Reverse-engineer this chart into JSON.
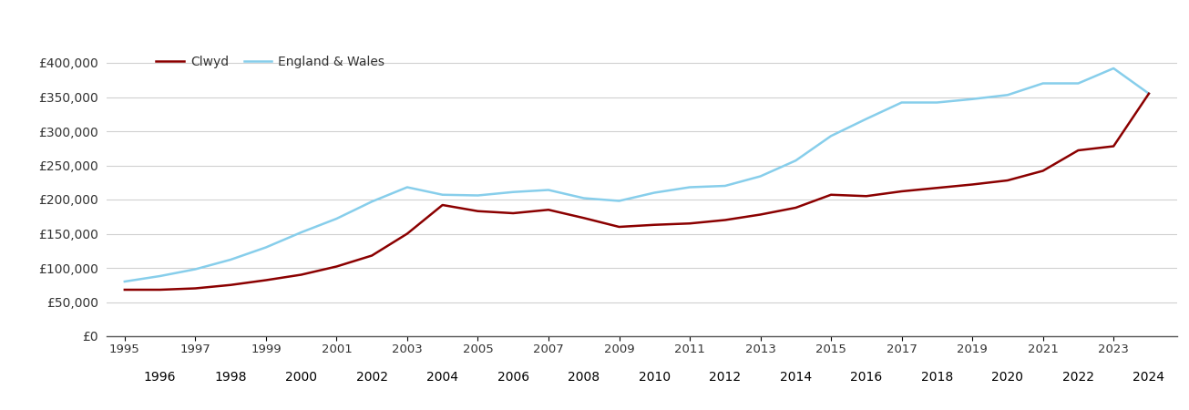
{
  "years": [
    1995,
    1996,
    1997,
    1998,
    1999,
    2000,
    2001,
    2002,
    2003,
    2004,
    2005,
    2006,
    2007,
    2008,
    2009,
    2010,
    2011,
    2012,
    2013,
    2014,
    2015,
    2016,
    2017,
    2018,
    2019,
    2020,
    2021,
    2022,
    2023,
    2024
  ],
  "clwyd": [
    68000,
    68000,
    70000,
    75000,
    82000,
    90000,
    102000,
    118000,
    150000,
    192000,
    183000,
    180000,
    185000,
    173000,
    160000,
    163000,
    165000,
    170000,
    178000,
    188000,
    207000,
    205000,
    212000,
    217000,
    222000,
    228000,
    242000,
    272000,
    278000,
    355000
  ],
  "england_wales": [
    80000,
    88000,
    98000,
    112000,
    130000,
    152000,
    172000,
    197000,
    218000,
    207000,
    206000,
    211000,
    214000,
    202000,
    198000,
    210000,
    218000,
    220000,
    234000,
    257000,
    293000,
    318000,
    342000,
    342000,
    347000,
    353000,
    370000,
    370000,
    392000,
    355000
  ],
  "clwyd_color": "#8B0000",
  "ew_color": "#87CEEB",
  "background_color": "#ffffff",
  "grid_color": "#d0d0d0",
  "ylim": [
    0,
    420000
  ],
  "yticks": [
    0,
    50000,
    100000,
    150000,
    200000,
    250000,
    300000,
    350000,
    400000
  ],
  "ytick_labels": [
    "£0",
    "£50,000",
    "£100,000",
    "£150,000",
    "£200,000",
    "£250,000",
    "£300,000",
    "£350,000",
    "£400,000"
  ],
  "legend_clwyd": "Clwyd",
  "legend_ew": "England & Wales",
  "line_width": 1.8,
  "xlim_left": 1994.5,
  "xlim_right": 2024.8
}
